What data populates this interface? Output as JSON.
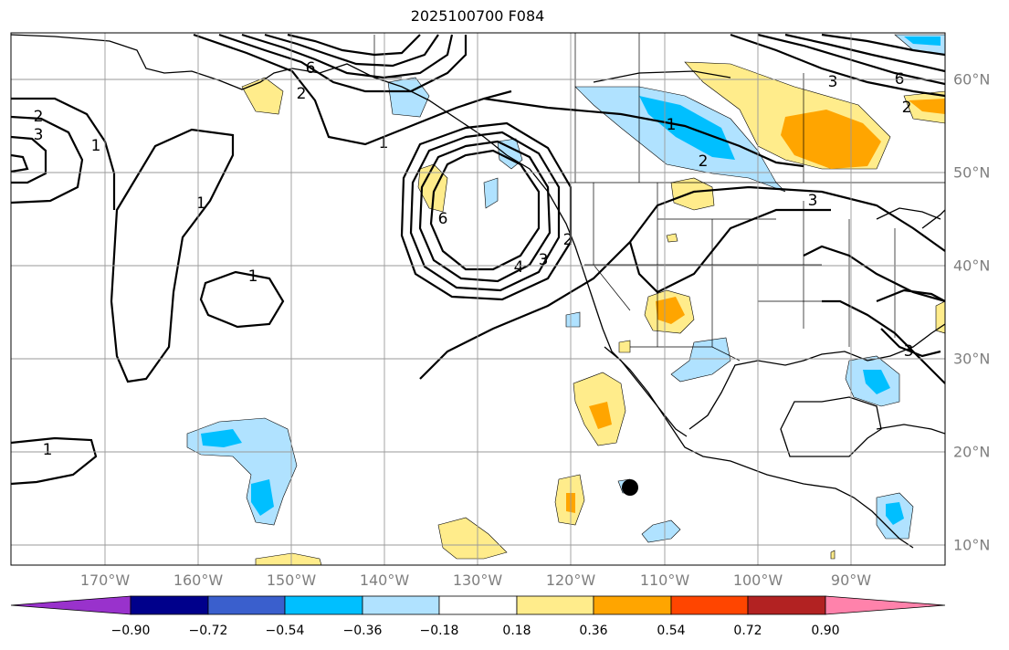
{
  "title": "2025100700 F084",
  "lon_labels": [
    "170°W",
    "160°W",
    "150°W",
    "140°W",
    "130°W",
    "120°W",
    "110°W",
    "100°W",
    "90°W"
  ],
  "lat_labels": [
    "60°N",
    "50°N",
    "40°N",
    "30°N",
    "20°N",
    "10°N"
  ],
  "colorbar": {
    "ticks": [
      "−0.90",
      "−0.72",
      "−0.54",
      "−0.36",
      "−0.18",
      "0.18",
      "0.36",
      "0.54",
      "0.72",
      "0.90"
    ],
    "colors": [
      "#9932CC",
      "#00008B",
      "#3A5FCD",
      "#00BFFF",
      "#B0E2FF",
      "#FFFFFF",
      "#FFEC8B",
      "#FFA500",
      "#FF4500",
      "#B22222",
      "#FF82AB"
    ]
  },
  "contour_labels": [
    "1",
    "1",
    "1",
    "1",
    "1",
    "1",
    "2",
    "2",
    "2",
    "2",
    "2",
    "3",
    "3",
    "3",
    "3",
    "3",
    "4",
    "6",
    "6",
    "6"
  ],
  "marker": "storm-center-dot"
}
